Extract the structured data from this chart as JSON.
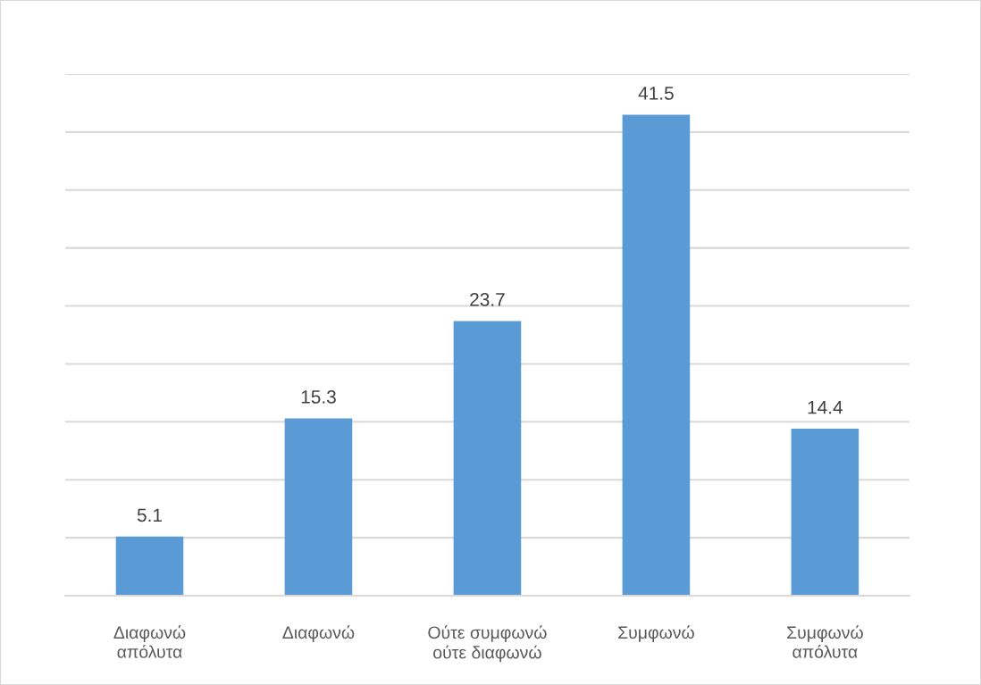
{
  "chart_data": {
    "type": "bar",
    "categories": [
      "Διαφωνώ\nαπόλυτα",
      "Διαφωνώ",
      "Ούτε συμφωνώ\nούτε διαφωνώ",
      "Συμφωνώ",
      "Συμφωνώ\nαπόλυτα"
    ],
    "values": [
      5.1,
      15.3,
      23.7,
      41.5,
      14.4
    ],
    "color": "#5b9bd5",
    "data_labels": true,
    "ylim": [
      0,
      45
    ],
    "yticks": [
      {
        "value": 0,
        "label": null
      },
      {
        "value": 5,
        "label": null
      },
      {
        "value": 10,
        "label": null
      },
      {
        "value": 15,
        "label": null
      },
      {
        "value": 20,
        "label": null
      },
      {
        "value": 25,
        "label": null
      },
      {
        "value": 30,
        "label": null
      },
      {
        "value": 35,
        "label": null
      },
      {
        "value": 40,
        "label": null
      },
      {
        "value": 45,
        "label": null
      }
    ],
    "grid": "y",
    "tick_labels": "x"
  }
}
